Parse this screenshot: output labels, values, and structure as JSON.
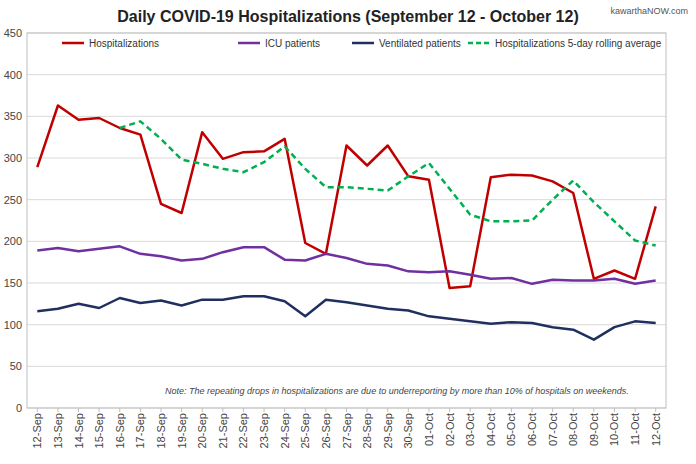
{
  "chart_data": {
    "type": "line",
    "title": "Daily COVID-19 Hospitalizations (September 12 - October 12)",
    "source": "kawarthaNOW.com",
    "note": "Note: The repeating drops in hospitalizations are due to underreporting by more than 10% of hospitals on weekends.",
    "categories": [
      "12-Sep",
      "13-Sep",
      "14-Sep",
      "15-Sep",
      "16-Sep",
      "17-Sep",
      "18-Sep",
      "19-Sep",
      "20-Sep",
      "21-Sep",
      "22-Sep",
      "23-Sep",
      "24-Sep",
      "25-Sep",
      "26-Sep",
      "27-Sep",
      "28-Sep",
      "29-Sep",
      "30-Sep",
      "01-Oct",
      "02-Oct",
      "03-Oct",
      "04-Oct",
      "05-Oct",
      "06-Oct",
      "07-Oct",
      "08-Oct",
      "09-Oct",
      "10-Oct",
      "11-Oct",
      "12-Oct"
    ],
    "series": [
      {
        "name": "Hospitalizations",
        "color": "#c00000",
        "line_style": "solid",
        "values": [
          289,
          363,
          346,
          348,
          336,
          328,
          245,
          234,
          331,
          299,
          307,
          308,
          323,
          198,
          185,
          315,
          291,
          315,
          278,
          274,
          144,
          146,
          277,
          280,
          279,
          272,
          258,
          155,
          165,
          155,
          242
        ]
      },
      {
        "name": "ICU patients",
        "color": "#7030a0",
        "line_style": "solid",
        "values": [
          189,
          192,
          188,
          191,
          194,
          185,
          182,
          177,
          179,
          187,
          193,
          193,
          178,
          177,
          185,
          180,
          173,
          171,
          164,
          163,
          164,
          160,
          155,
          156,
          149,
          154,
          153,
          153,
          155,
          149,
          153
        ]
      },
      {
        "name": "Ventilated patients",
        "color": "#1f2f5f",
        "line_style": "solid",
        "values": [
          116,
          119,
          125,
          120,
          132,
          126,
          129,
          123,
          130,
          130,
          134,
          134,
          128,
          110,
          130,
          127,
          123,
          119,
          117,
          110,
          107,
          104,
          101,
          103,
          102,
          97,
          94,
          82,
          97,
          104,
          102
        ]
      },
      {
        "name": "Hospitalizations 5-day rolling average",
        "color": "#00b050",
        "line_style": "dashed",
        "values": [
          null,
          null,
          null,
          null,
          336,
          344,
          323,
          298,
          293,
          287,
          283,
          295,
          314,
          287,
          265,
          265,
          263,
          261,
          278,
          294,
          263,
          232,
          224,
          224,
          225,
          250,
          273,
          247,
          224,
          201,
          195
        ]
      }
    ],
    "ylim": [
      0,
      450
    ],
    "yticks": [
      0,
      50,
      100,
      150,
      200,
      250,
      300,
      350,
      400,
      450
    ],
    "grid": true,
    "legend": "top"
  }
}
